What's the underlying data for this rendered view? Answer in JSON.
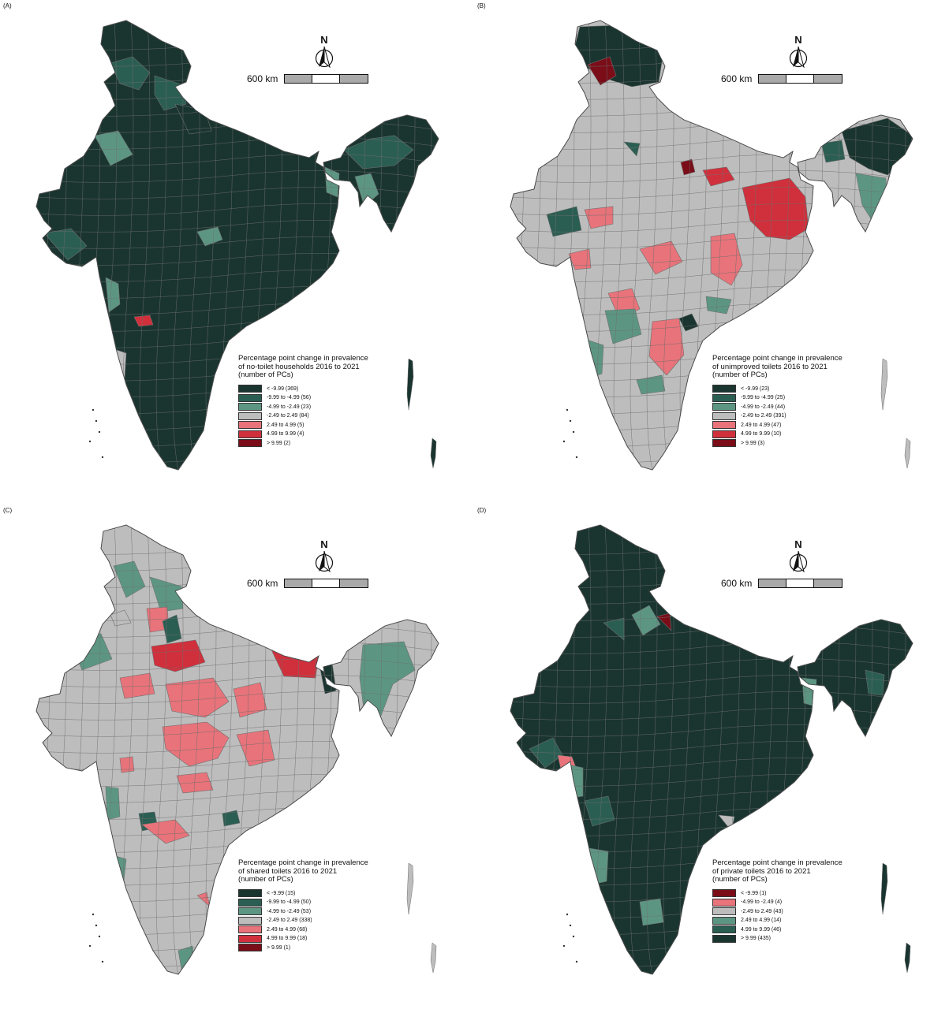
{
  "colors": {
    "dark": "#1a3530",
    "dark_teal": "#2b5e52",
    "teal": "#5c9683",
    "grey": "#bdbdbd",
    "pink": "#e8737a",
    "red": "#d0303c",
    "dark_red": "#7a0d18",
    "boundary": "#6e6e6e"
  },
  "north_arrow": {
    "label": "N",
    "icon": "north-arrow-icon"
  },
  "scale_bar": {
    "label": "600 km"
  },
  "panels": [
    {
      "id": "A",
      "label": "(A)",
      "legend_title": [
        "Percentage point change in prevalence",
        "of no-toilet households 2016 to 2021",
        "(number of PCs)"
      ],
      "legend": [
        {
          "label": "< -9.99 (369)",
          "color": "#1a3530"
        },
        {
          "label": "-9.99 to -4.99 (56)",
          "color": "#2b5e52"
        },
        {
          "label": "-4.99 to -2.49 (23)",
          "color": "#5c9683"
        },
        {
          "label": "-2.49 to 2.49 (84)",
          "color": "#bdbdbd"
        },
        {
          "label": "2.49 to 4.99 (5)",
          "color": "#e8737a"
        },
        {
          "label": "4.99 to 9.99 (4)",
          "color": "#d0303c"
        },
        {
          "label": "> 9.99 (2)",
          "color": "#7a0d18"
        }
      ],
      "dominant_color": "#1a3530"
    },
    {
      "id": "B",
      "label": "(B)",
      "legend_title": [
        "Percentage point change in prevalence",
        "of unimproved toilets 2016 to 2021",
        "(number of PCs)"
      ],
      "legend": [
        {
          "label": "< -9.99 (23)",
          "color": "#1a3530"
        },
        {
          "label": "-9.99 to -4.99 (25)",
          "color": "#2b5e52"
        },
        {
          "label": "-4.99 to -2.49 (44)",
          "color": "#5c9683"
        },
        {
          "label": "-2.49 to 2.49 (391)",
          "color": "#bdbdbd"
        },
        {
          "label": "2.49 to 4.99 (47)",
          "color": "#e8737a"
        },
        {
          "label": "4.99 to 9.99 (10)",
          "color": "#d0303c"
        },
        {
          "label": "> 9.99 (3)",
          "color": "#7a0d18"
        }
      ],
      "dominant_color": "#bdbdbd"
    },
    {
      "id": "C",
      "label": "(C)",
      "legend_title": [
        "Percentage point change in prevalence",
        "of shared toilets 2016 to 2021",
        "(number of PCs)"
      ],
      "legend": [
        {
          "label": "< -9.99 (15)",
          "color": "#1a3530"
        },
        {
          "label": "-9.99 to -4.99 (50)",
          "color": "#2b5e52"
        },
        {
          "label": "-4.99 to -2.49 (53)",
          "color": "#5c9683"
        },
        {
          "label": "-2.49 to 2.49 (338)",
          "color": "#bdbdbd"
        },
        {
          "label": "2.49 to 4.99 (68)",
          "color": "#e8737a"
        },
        {
          "label": "4.99 to 9.99 (18)",
          "color": "#d0303c"
        },
        {
          "label": "> 9.99 (1)",
          "color": "#7a0d18"
        }
      ],
      "dominant_color": "#bdbdbd"
    },
    {
      "id": "D",
      "label": "(D)",
      "legend_title": [
        "Percentage point change in prevalence",
        "of private toilets 2016 to 2021",
        "(number of PCs)"
      ],
      "legend": [
        {
          "label": "< -9.99 (1)",
          "color": "#7a0d18"
        },
        {
          "label": "-4.99 to -2.49 (4)",
          "color": "#e8737a"
        },
        {
          "label": "-2.49 to 2.49 (43)",
          "color": "#bdbdbd"
        },
        {
          "label": "2.49 to 4.99 (14)",
          "color": "#5c9683"
        },
        {
          "label": "4.99 to 9.99 (46)",
          "color": "#2b5e52"
        },
        {
          "label": "> 9.99 (435)",
          "color": "#1a3530"
        }
      ],
      "dominant_color": "#1a3530"
    }
  ]
}
